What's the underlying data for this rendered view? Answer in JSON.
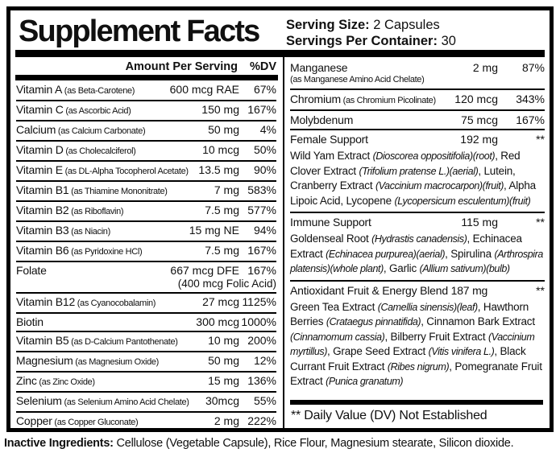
{
  "header": {
    "title": "Supplement Facts",
    "serving_size_label": "Serving Size:",
    "serving_size_value": " 2 Capsules",
    "servings_per_container_label": "Servings Per Container:",
    "servings_per_container_value": " 30"
  },
  "left_column": {
    "amount_header": "Amount Per Serving",
    "dv_header": "%DV",
    "rows": [
      {
        "name": "Vitamin A",
        "form": "(as Beta-Carotene)",
        "amount": "600 mcg RAE",
        "dv": "67%"
      },
      {
        "name": "Vitamin C",
        "form": "(as Ascorbic Acid)",
        "amount": "150 mg",
        "dv": "167%"
      },
      {
        "name": "Calcium",
        "form": "(as Calcium Carbonate)",
        "amount": "50 mg",
        "dv": "4%"
      },
      {
        "name": "Vitamin D",
        "form": "(as Cholecalciferol)",
        "amount": "10 mcg",
        "dv": "50%"
      },
      {
        "name": "Vitamin E",
        "form": "(as DL-Alpha Tocopherol Acetate)",
        "amount": "13.5 mg",
        "dv": "90%"
      },
      {
        "name": "Vitamin B1",
        "form": "(as Thiamine Mononitrate)",
        "amount": "7 mg",
        "dv": "583%"
      },
      {
        "name": "Vitamin B2",
        "form": "(as Riboflavin)",
        "amount": "7.5 mg",
        "dv": "577%"
      },
      {
        "name": "Vitamin B3",
        "form": "(as Niacin)",
        "amount": "15 mg NE",
        "dv": "94%"
      },
      {
        "name": "Vitamin B6",
        "form": "(as Pyridoxine HCl)",
        "amount": "7.5 mg",
        "dv": "167%"
      },
      {
        "name": "Folate",
        "form": "",
        "amount": "667 mcg DFE",
        "dv": "167%",
        "subnote": "(400 mcg Folic Acid)"
      },
      {
        "name": "Vitamin B12",
        "form": "(as Cyanocobalamin)",
        "amount": "27 mcg",
        "dv": "1125%"
      },
      {
        "name": "Biotin",
        "form": "",
        "amount": "300 mcg",
        "dv": "1000%"
      },
      {
        "name": "Vitamin B5",
        "form": "(as D-Calcium Pantothenate)",
        "amount": "10 mg",
        "dv": "200%"
      },
      {
        "name": "Magnesium",
        "form": "(as Magnesium Oxide)",
        "amount": "50 mg",
        "dv": "12%"
      },
      {
        "name": "Zinc",
        "form": "(as Zinc Oxide)",
        "amount": "15 mg",
        "dv": "136%"
      },
      {
        "name": "Selenium",
        "form": "(as Selenium Amino Acid Chelate)",
        "amount": "30mcg",
        "dv": "55%"
      },
      {
        "name": "Copper",
        "form": "(as Copper Gluconate)",
        "amount": "2 mg",
        "dv": "222%"
      }
    ]
  },
  "right_column": {
    "rows": [
      {
        "name": "Manganese",
        "form": "(as Manganese Amino Acid Chelate)",
        "form_on_new_line": true,
        "amount": "2 mg",
        "dv": "87%"
      },
      {
        "name": "Chromium",
        "form": "(as Chromium Picolinate)",
        "amount": "120 mcg",
        "dv": "343%"
      },
      {
        "name": "Molybdenum",
        "form": "",
        "amount": "75 mcg",
        "dv": "167%"
      },
      {
        "name": "Female Support",
        "form": "",
        "amount": "192 mg",
        "dv": "**",
        "blend": [
          {
            "text": "Wild Yam Extract ",
            "italic": false
          },
          {
            "text": "(Dioscorea oppositifolia)(root)",
            "italic": true
          },
          {
            "text": ", Red Clover Extract ",
            "italic": false
          },
          {
            "text": "(Trifolium pratense L.)(aerial)",
            "italic": true
          },
          {
            "text": ", Lutein, Cranberry Extract ",
            "italic": false
          },
          {
            "text": "(Vaccinium macrocarpon)(fruit)",
            "italic": true
          },
          {
            "text": ", Alpha Lipoic Acid, Lycopene ",
            "italic": false
          },
          {
            "text": "(Lycopersicum esculentum)(fruit)",
            "italic": true
          }
        ]
      },
      {
        "name": "Immune Support",
        "form": "",
        "amount": "115 mg",
        "dv": "**",
        "blend": [
          {
            "text": "Goldenseal Root ",
            "italic": false
          },
          {
            "text": "(Hydrastis canadensis)",
            "italic": true
          },
          {
            "text": ", Echinacea Extract ",
            "italic": false
          },
          {
            "text": "(Echinacea purpurea)(aerial)",
            "italic": true
          },
          {
            "text": ", Spirulina ",
            "italic": false
          },
          {
            "text": "(Arthrospira platensis)(whole plant)",
            "italic": true
          },
          {
            "text": ", Garlic ",
            "italic": false
          },
          {
            "text": "(Allium sativum)(bulb)",
            "italic": true
          }
        ]
      },
      {
        "name": "Antioxidant Fruit & Energy Blend 187 mg",
        "form": "",
        "amount": "",
        "dv": "**",
        "blend": [
          {
            "text": "Green Tea Extract ",
            "italic": false
          },
          {
            "text": "(Camellia sinensis)(leaf)",
            "italic": true
          },
          {
            "text": ", Hawthorn Berries ",
            "italic": false
          },
          {
            "text": "(Crataegus pinnatifida)",
            "italic": true
          },
          {
            "text": ", Cinnamon Bark Extract ",
            "italic": false
          },
          {
            "text": "(Cinnamomum cassia)",
            "italic": true
          },
          {
            "text": ", Bilberry Fruit Extract ",
            "italic": false
          },
          {
            "text": "(Vaccinium myrtillus)",
            "italic": true
          },
          {
            "text": ", Grape Seed Extract ",
            "italic": false
          },
          {
            "text": "(Vitis vinifera L.)",
            "italic": true
          },
          {
            "text": ", Black Currant Fruit Extract ",
            "italic": false
          },
          {
            "text": "(Ribes nigrum)",
            "italic": true
          },
          {
            "text": ", Pomegranate Fruit Extract ",
            "italic": false
          },
          {
            "text": "(Punica granatum)",
            "italic": true
          }
        ]
      }
    ],
    "footnote": "** Daily Value (DV) Not Established"
  },
  "footer": {
    "label": "Inactive Ingredients:",
    "text": " Cellulose (Vegetable Capsule), Rice Flour, Magnesium stearate, Silicon dioxide."
  }
}
